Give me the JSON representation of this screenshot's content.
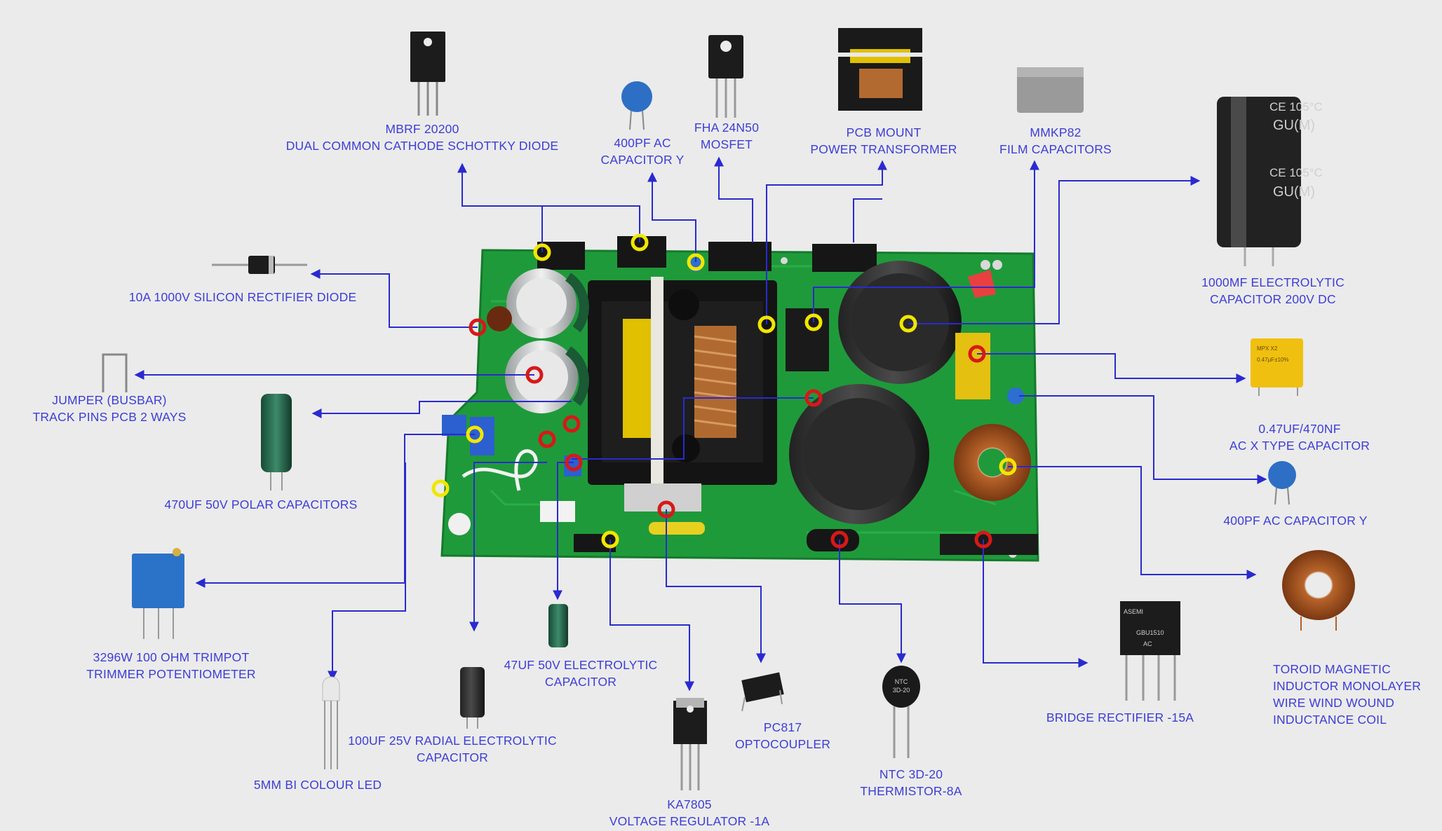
{
  "colors": {
    "background": "#ebebeb",
    "label_text": "#3d3dd6",
    "leader_line": "#2a2ad0",
    "pcb_green": "#1f9a3a",
    "marker_yellow": "#f2e600",
    "marker_red": "#d81818"
  },
  "components": [
    {
      "id": "mbrf",
      "lines": [
        "MBRF 20200",
        "DUAL COMMON CATHODE SCHOTTKY DIODE"
      ],
      "icon": "to220-diode-icon",
      "marker": "yellow"
    },
    {
      "id": "cap_y_top",
      "lines": [
        "400PF AC",
        "CAPACITOR Y"
      ],
      "icon": "ceramic-disc-capacitor-icon",
      "marker": "yellow"
    },
    {
      "id": "mosfet",
      "lines": [
        "FHA 24N50",
        "MOSFET"
      ],
      "icon": "to247-mosfet-icon",
      "marker": "none"
    },
    {
      "id": "transformer",
      "lines": [
        "PCB MOUNT",
        "POWER TRANSFORMER"
      ],
      "icon": "transformer-icon",
      "marker": "yellow"
    },
    {
      "id": "mmkp",
      "lines": [
        "MMKP82",
        "FILM CAPACITORS"
      ],
      "icon": "film-capacitor-icon",
      "marker": "yellow"
    },
    {
      "id": "elec_1000",
      "lines": [
        "1000MF ELECTROLYTIC",
        "CAPACITOR 200V DC"
      ],
      "icon": "electrolytic-capacitor-icon",
      "marker": "yellow"
    },
    {
      "id": "rect_diode",
      "lines": [
        "10A 1000V SILICON RECTIFIER DIODE"
      ],
      "icon": "axial-diode-icon",
      "marker": "red"
    },
    {
      "id": "jumper",
      "lines": [
        "JUMPER (BUSBAR)",
        "TRACK PINS PCB 2 WAYS"
      ],
      "icon": "jumper-wire-icon",
      "marker": "red"
    },
    {
      "id": "polar_470",
      "lines": [
        "470UF 50V POLAR CAPACITORS"
      ],
      "icon": "green-electrolytic-capacitor-icon",
      "marker": "red"
    },
    {
      "id": "trimpot",
      "lines": [
        "3296W 100 OHM TRIMPOT",
        "TRIMMER POTENTIOMETER"
      ],
      "icon": "trimpot-icon",
      "marker": "yellow"
    },
    {
      "id": "led",
      "lines": [
        "5MM BI COLOUR LED"
      ],
      "icon": "led-icon",
      "marker": "none"
    },
    {
      "id": "radial_100",
      "lines": [
        "100UF 25V RADIAL ELECTROLYTIC",
        "CAPACITOR"
      ],
      "icon": "radial-capacitor-icon",
      "marker": "none"
    },
    {
      "id": "elec_47",
      "lines": [
        "47UF 50V ELECTROLYTIC",
        "CAPACITOR"
      ],
      "icon": "small-electrolytic-capacitor-icon",
      "marker": "red"
    },
    {
      "id": "ka7805",
      "lines": [
        "KA7805",
        "VOLTAGE REGULATOR -1A"
      ],
      "icon": "to220-regulator-icon",
      "marker": "yellow"
    },
    {
      "id": "pc817",
      "lines": [
        "PC817",
        "OPTOCOUPLER"
      ],
      "icon": "dip4-optocoupler-icon",
      "marker": "red"
    },
    {
      "id": "ntc",
      "lines": [
        "NTC 3D-20",
        "THERMISTOR-8A"
      ],
      "icon": "ntc-thermistor-icon",
      "marker": "red"
    },
    {
      "id": "bridge",
      "lines": [
        "BRIDGE RECTIFIER -15A"
      ],
      "icon": "bridge-rectifier-icon",
      "marker": "red"
    },
    {
      "id": "toroid",
      "lines": [
        "TOROID MAGNETIC",
        "INDUCTOR MONOLAYER",
        "WIRE WIND WOUND",
        "INDUCTANCE COIL"
      ],
      "icon": "toroid-inductor-icon",
      "marker": "yellow"
    },
    {
      "id": "cap_y_right",
      "lines": [
        "400PF AC CAPACITOR Y"
      ],
      "icon": "ceramic-disc-capacitor-icon",
      "marker": "red"
    },
    {
      "id": "x_cap",
      "lines": [
        "0.47UF/470NF",
        "AC X TYPE CAPACITOR"
      ],
      "icon": "x-type-capacitor-icon",
      "marker": "red"
    }
  ],
  "component_labels": {
    "ntc_body": [
      "NTC",
      "3D-20"
    ],
    "bridge_body": [
      "ASEMI",
      "GBU1510",
      "AC"
    ],
    "elec_1000_body": [
      "CE 105°C",
      "GU(M)"
    ],
    "x_cap_body": [
      "MPX X2",
      "0.47μF±10%"
    ]
  }
}
